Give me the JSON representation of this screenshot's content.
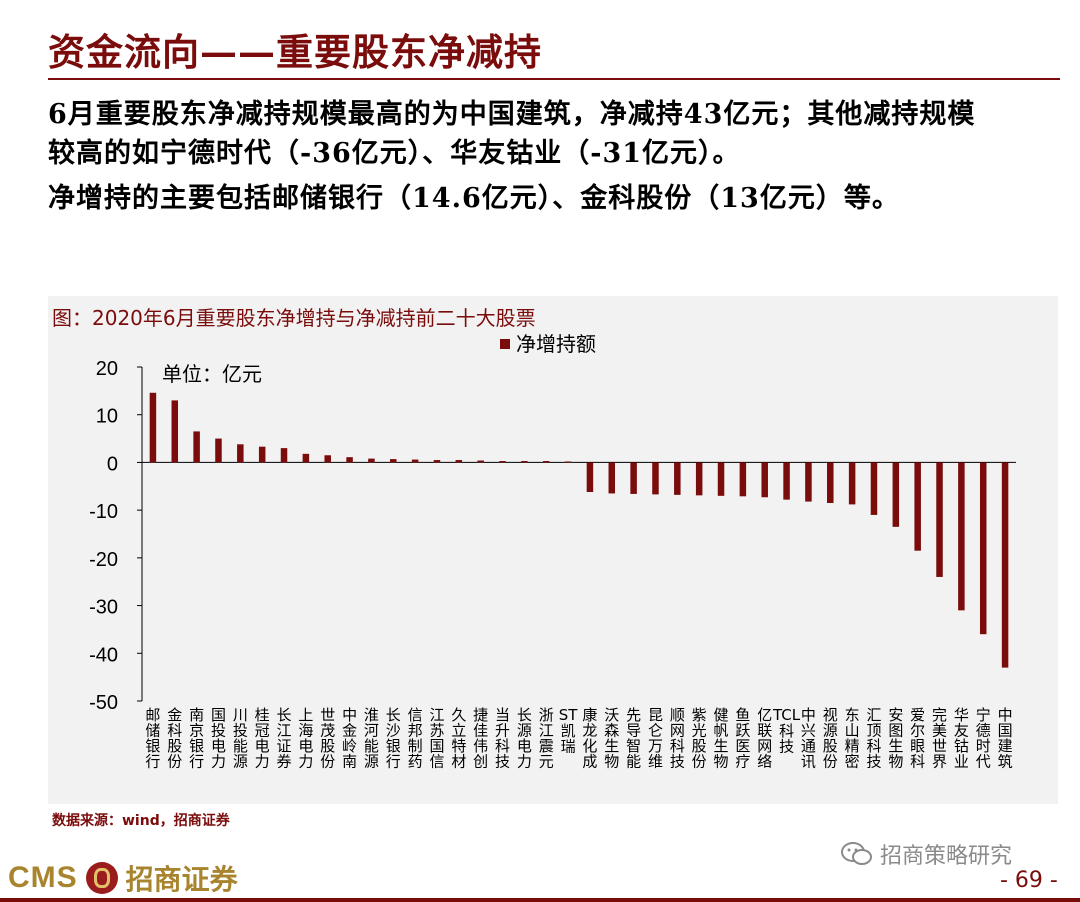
{
  "header": {
    "title": "资金流向——重要股东净减持"
  },
  "summary": {
    "line1": "6月重要股东净减持规模最高的为中国建筑，净减持43亿元；其他减持规模",
    "line2": "较高的如宁德时代（-36亿元）、华友钴业（-31亿元）。",
    "line3": "净增持的主要包括邮储银行（14.6亿元）、金科股份（13亿元）等。"
  },
  "chart_title": "图：2020年6月重要股东净增持与净减持前二十大股票",
  "chart_data": {
    "type": "bar",
    "unit_label": "单位：亿元",
    "ylim": [
      -50,
      20
    ],
    "yticks": [
      20,
      10,
      0,
      -10,
      -20,
      -30,
      -40,
      -50
    ],
    "series": [
      {
        "name": "净增持额",
        "color": "#7a0c0c"
      }
    ],
    "categories": [
      "邮储银行",
      "金科股份",
      "南京银行",
      "国投电力",
      "川投能源",
      "桂冠电力",
      "长江证券",
      "上海电力",
      "世茂股份",
      "中金岭南",
      "淮河能源",
      "长沙银行",
      "信邦制药",
      "江苏国信",
      "久立特材",
      "捷佳伟创",
      "当升科技",
      "长源电力",
      "浙江震元",
      "ST凯瑞",
      "康龙化成",
      "沃森生物",
      "先导智能",
      "昆仑万维",
      "顺网科技",
      "紫光股份",
      "健帆生物",
      "鱼跃医疗",
      "亿联网络",
      "TCL科技",
      "中兴通讯",
      "视源股份",
      "东山精密",
      "汇顶科技",
      "安图生物",
      "爱尔眼科",
      "完美世界",
      "华友钴业",
      "宁德时代",
      "中国建筑"
    ],
    "values": [
      14.6,
      13,
      6.5,
      5,
      3.8,
      3.3,
      3,
      1.8,
      1.5,
      1.1,
      0.8,
      0.7,
      0.6,
      0.5,
      0.5,
      0.4,
      0.3,
      0.3,
      0.3,
      0.2,
      -6.2,
      -6.5,
      -6.6,
      -6.7,
      -6.8,
      -6.9,
      -7.0,
      -7.1,
      -7.3,
      -7.8,
      -8.2,
      -8.5,
      -8.8,
      -11,
      -13.5,
      -18.5,
      -24,
      -31,
      -36,
      -43
    ]
  },
  "source": "数据来源：wind，招商证券",
  "watermark": "招商策略研究",
  "brand": {
    "cms": "CMS",
    "name": "招商证券"
  },
  "page_number": "- 69 -",
  "icons": {
    "wechat": "wechat-icon",
    "logo": "cms-logo-icon"
  }
}
